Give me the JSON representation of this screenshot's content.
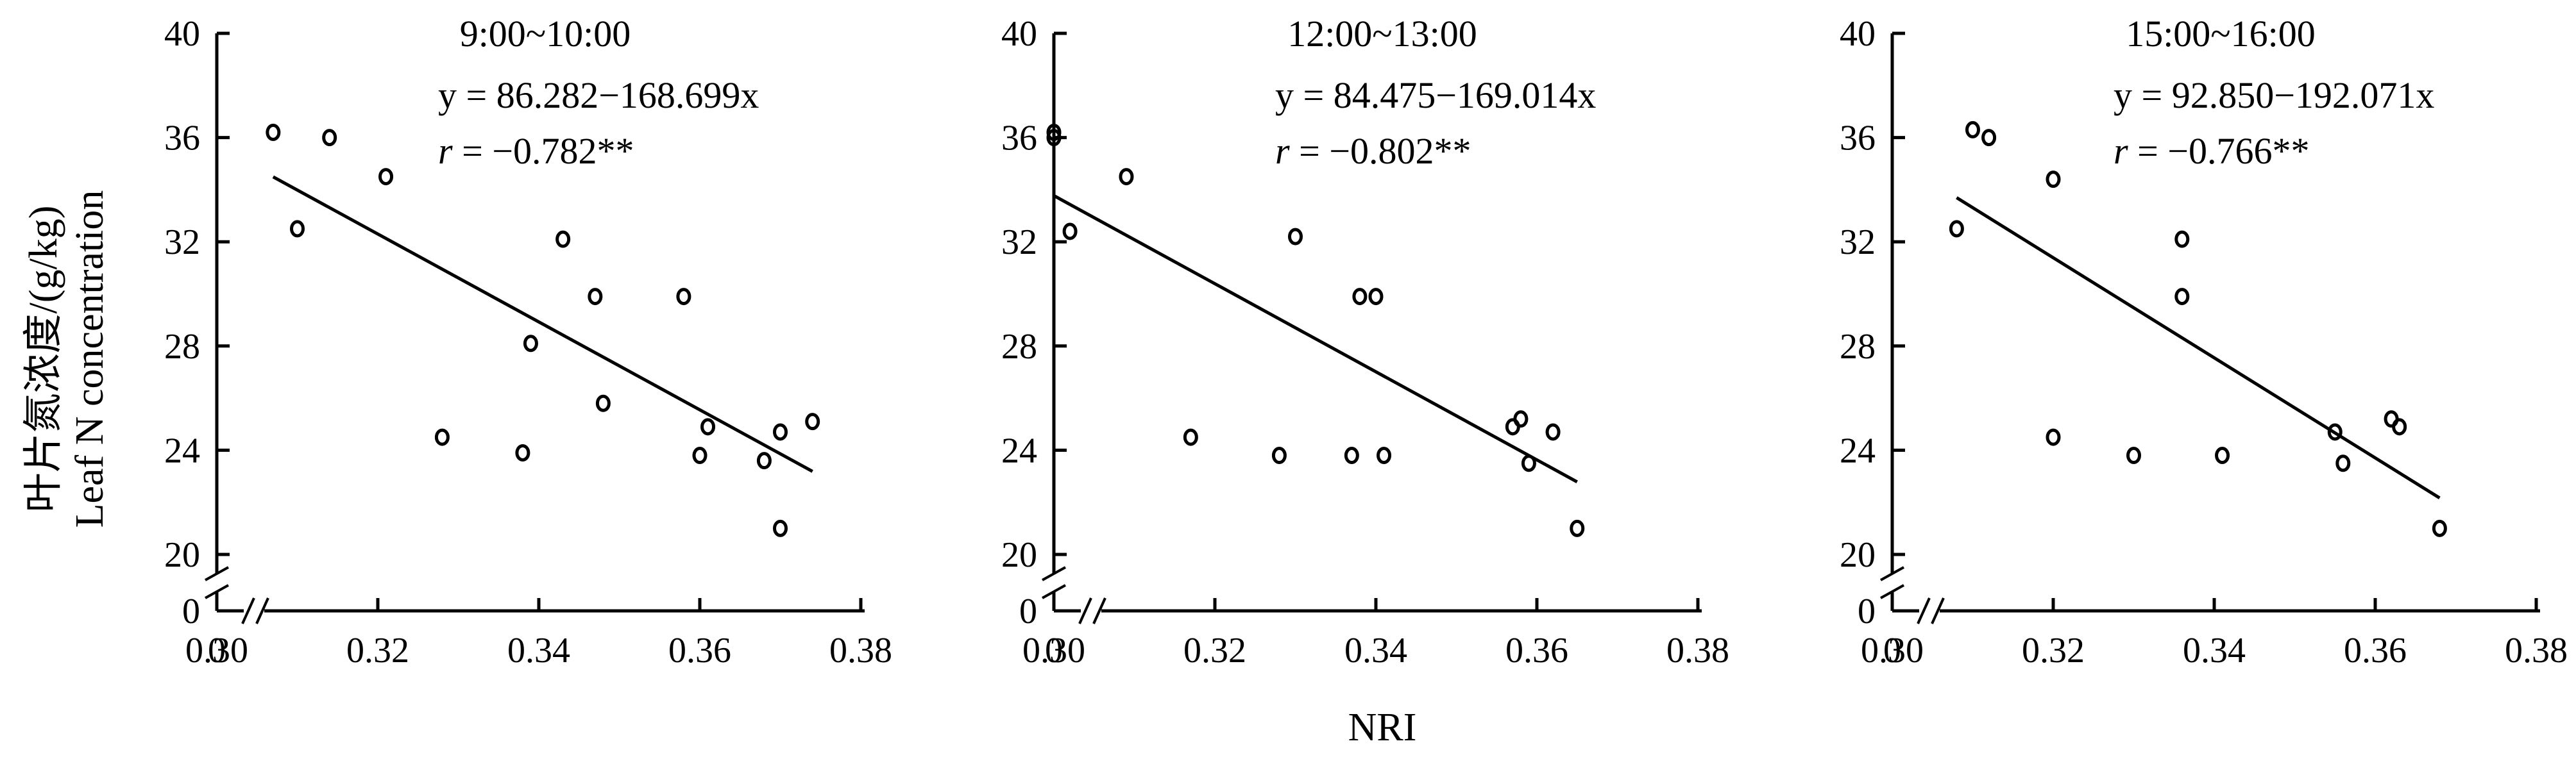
{
  "figure": {
    "ylabel_cn": "叶片氮浓度/(g/kg)",
    "ylabel_en": "Leaf N concentration",
    "xlabel": "NRI",
    "colors": {
      "axis": "#000000",
      "marker": "#000000",
      "line": "#000000"
    }
  },
  "chart_data": [
    {
      "type": "scatter",
      "title": "9:00~10:00",
      "equation": "y = 86.282−168.699x",
      "r_symbol": "r",
      "r_text": " = −0.782**",
      "x_ticks": [
        "0",
        "0.30",
        "0.32",
        "0.34",
        "0.36",
        "0.38"
      ],
      "y_ticks": [
        "0",
        "20",
        "24",
        "28",
        "32",
        "36",
        "40"
      ],
      "xlim": [
        0.3,
        0.38
      ],
      "ylim": [
        20,
        40
      ],
      "axis_break": true,
      "grid": false,
      "points": [
        [
          0.307,
          36.2
        ],
        [
          0.31,
          32.5
        ],
        [
          0.314,
          36.0
        ],
        [
          0.321,
          34.5
        ],
        [
          0.328,
          24.5
        ],
        [
          0.338,
          23.9
        ],
        [
          0.339,
          28.1
        ],
        [
          0.343,
          32.1
        ],
        [
          0.347,
          29.9
        ],
        [
          0.348,
          25.8
        ],
        [
          0.358,
          29.9
        ],
        [
          0.36,
          23.8
        ],
        [
          0.361,
          24.9
        ],
        [
          0.368,
          23.6
        ],
        [
          0.37,
          24.7
        ],
        [
          0.37,
          21.0
        ],
        [
          0.374,
          25.1
        ]
      ],
      "fit": {
        "intercept": 86.282,
        "slope": -168.699,
        "x_range": [
          0.307,
          0.374
        ]
      }
    },
    {
      "type": "scatter",
      "title": "12:00~13:00",
      "equation": "y = 84.475−169.014x",
      "r_symbol": "r",
      "r_text": " = −0.802**",
      "x_ticks": [
        "0",
        "0.30",
        "0.32",
        "0.34",
        "0.36",
        "0.38"
      ],
      "y_ticks": [
        "0",
        "20",
        "24",
        "28",
        "32",
        "36",
        "40"
      ],
      "xlim": [
        0.3,
        0.38
      ],
      "ylim": [
        20,
        40
      ],
      "axis_break": true,
      "grid": false,
      "points": [
        [
          0.3,
          36.2
        ],
        [
          0.3,
          36.0
        ],
        [
          0.302,
          32.4
        ],
        [
          0.309,
          34.5
        ],
        [
          0.317,
          24.5
        ],
        [
          0.328,
          23.8
        ],
        [
          0.33,
          32.2
        ],
        [
          0.337,
          23.8
        ],
        [
          0.338,
          29.9
        ],
        [
          0.34,
          29.9
        ],
        [
          0.341,
          23.8
        ],
        [
          0.357,
          24.9
        ],
        [
          0.358,
          25.2
        ],
        [
          0.359,
          23.5
        ],
        [
          0.362,
          24.7
        ],
        [
          0.365,
          21.0
        ]
      ],
      "fit": {
        "intercept": 84.475,
        "slope": -169.014,
        "x_range": [
          0.3,
          0.365
        ]
      }
    },
    {
      "type": "scatter",
      "title": "15:00~16:00",
      "equation": "y = 92.850−192.071x",
      "r_symbol": "r",
      "r_text": " = −0.766**",
      "x_ticks": [
        "0",
        "0.30",
        "0.32",
        "0.34",
        "0.36",
        "0.38"
      ],
      "y_ticks": [
        "0",
        "20",
        "24",
        "28",
        "32",
        "36",
        "40"
      ],
      "xlim": [
        0.3,
        0.38
      ],
      "ylim": [
        20,
        40
      ],
      "axis_break": true,
      "grid": false,
      "points": [
        [
          0.308,
          32.5
        ],
        [
          0.31,
          36.3
        ],
        [
          0.312,
          36.0
        ],
        [
          0.32,
          34.4
        ],
        [
          0.32,
          24.5
        ],
        [
          0.33,
          23.8
        ],
        [
          0.336,
          32.1
        ],
        [
          0.336,
          29.9
        ],
        [
          0.341,
          23.8
        ],
        [
          0.355,
          24.7
        ],
        [
          0.356,
          23.5
        ],
        [
          0.362,
          25.2
        ],
        [
          0.363,
          24.9
        ],
        [
          0.368,
          21.0
        ]
      ],
      "fit": {
        "intercept": 92.85,
        "slope": -192.071,
        "x_range": [
          0.308,
          0.368
        ]
      }
    }
  ]
}
